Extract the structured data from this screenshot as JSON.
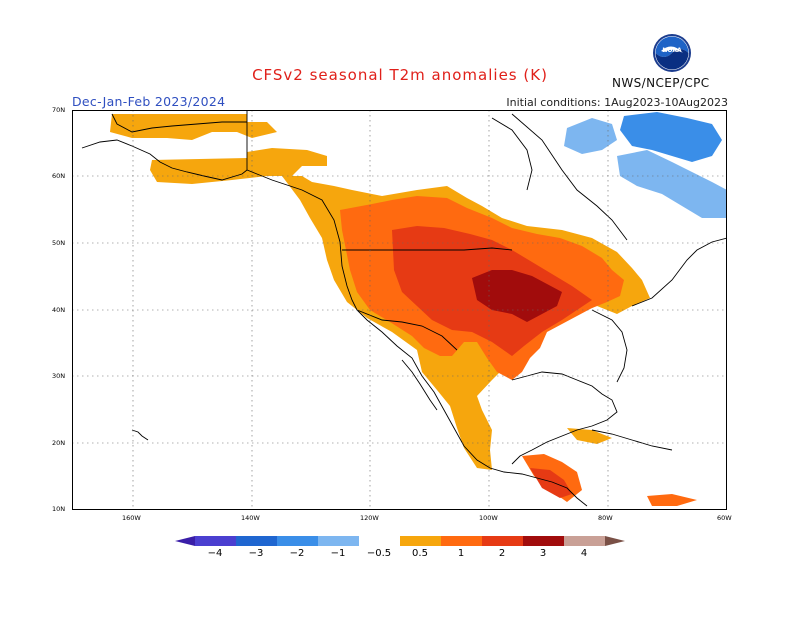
{
  "title": "CFSv2 seasonal T2m anomalies (K)",
  "season": "Dec-Jan-Feb 2023/2024",
  "initial_conditions": "Initial conditions: 1Aug2023-10Aug2023",
  "agency": "NWS/NCEP/CPC",
  "logo": {
    "icon": "noaa-logo-icon",
    "text": "NOAA"
  },
  "lat_labels": [
    "70N",
    "60N",
    "50N",
    "40N",
    "30N",
    "20N",
    "10N"
  ],
  "lon_labels": [
    "160W",
    "140W",
    "120W",
    "100W",
    "80W",
    "60W"
  ],
  "colorbar": {
    "labels": [
      "−4",
      "−3",
      "−2",
      "−1",
      "−0.5",
      "0.5",
      "1",
      "2",
      "3",
      "4"
    ],
    "colors": [
      "#3a1ea8",
      "#4b3fd0",
      "#1f66d0",
      "#3a8ee8",
      "#7db6f0",
      "#ffffff",
      "#f6a60d",
      "#ff6a10",
      "#e63a14",
      "#a10c0c",
      "#c9a096",
      "#7a5046"
    ]
  }
}
